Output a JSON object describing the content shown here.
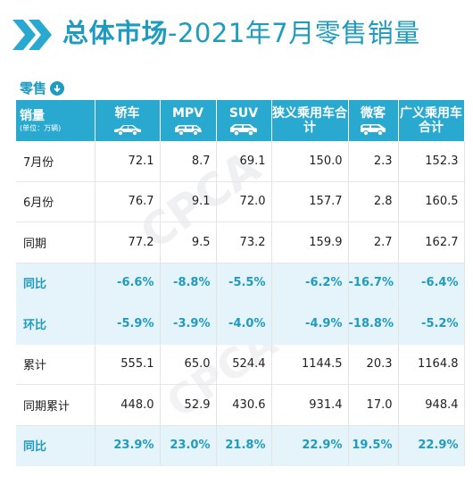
{
  "header": {
    "title_bold": "总体市场",
    "title_rest": "-2021年7月零售销量"
  },
  "section": {
    "label": "零售"
  },
  "table": {
    "corner_main": "销量",
    "corner_sub": "(单位：万辆)",
    "columns": [
      "轿车",
      "MPV",
      "SUV",
      "狭义乘用车合计",
      "微客",
      "广义乘用车合计"
    ],
    "column_icons": [
      "sedan-icon",
      "mpv-icon",
      "suv-icon",
      "",
      "minivan-icon",
      ""
    ],
    "rows": [
      {
        "label": "7月份",
        "values": [
          "72.1",
          "8.7",
          "69.1",
          "150.0",
          "2.3",
          "152.3"
        ],
        "highlight": false
      },
      {
        "label": "6月份",
        "values": [
          "76.7",
          "9.1",
          "72.0",
          "157.7",
          "2.8",
          "160.5"
        ],
        "highlight": false
      },
      {
        "label": "同期",
        "values": [
          "77.2",
          "9.5",
          "73.2",
          "159.9",
          "2.7",
          "162.7"
        ],
        "highlight": false
      },
      {
        "label": "同比",
        "values": [
          "-6.6%",
          "-8.8%",
          "-5.5%",
          "-6.2%",
          "-16.7%",
          "-6.4%"
        ],
        "highlight": true
      },
      {
        "label": "环比",
        "values": [
          "-5.9%",
          "-3.9%",
          "-4.0%",
          "-4.9%",
          "-18.8%",
          "-5.2%"
        ],
        "highlight": true
      },
      {
        "label": "累计",
        "values": [
          "555.1",
          "65.0",
          "524.4",
          "1144.5",
          "20.3",
          "1164.8"
        ],
        "highlight": false
      },
      {
        "label": "同期累计",
        "values": [
          "448.0",
          "52.9",
          "430.6",
          "931.4",
          "17.0",
          "948.4"
        ],
        "highlight": false
      },
      {
        "label": "同比",
        "values": [
          "23.9%",
          "23.0%",
          "21.8%",
          "22.9%",
          "19.5%",
          "22.9%"
        ],
        "highlight": true
      }
    ]
  },
  "watermark": "CPCA",
  "colors": {
    "accent": "#1f9bbf",
    "header_bg": "#29a9d0",
    "highlight_bg": "#e5f3fb"
  }
}
